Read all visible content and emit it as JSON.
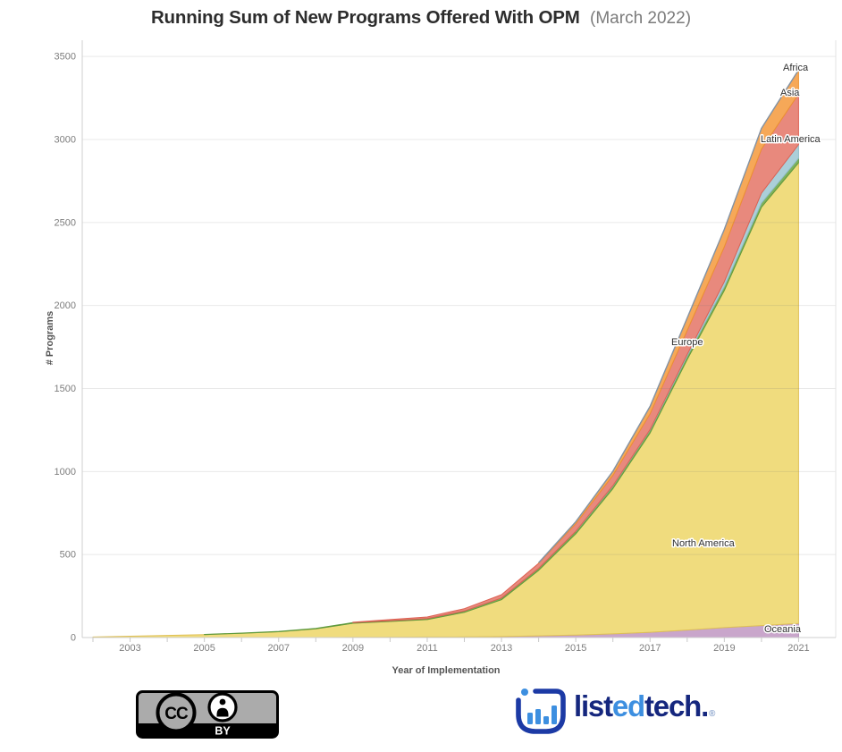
{
  "title": {
    "main": "Running Sum of New Programs Offered With OPM",
    "subtitle": "(March 2022)"
  },
  "chart_data": {
    "type": "area",
    "stacked": true,
    "title": "Running Sum of New Programs Offered With OPM (March 2022)",
    "xlabel": "Year of Implementation",
    "ylabel": "# Programs",
    "x": [
      2002,
      2003,
      2004,
      2005,
      2006,
      2007,
      2008,
      2009,
      2010,
      2011,
      2012,
      2013,
      2014,
      2015,
      2016,
      2017,
      2018,
      2019,
      2020,
      2021
    ],
    "x_tick_labels": [
      "2003",
      "2005",
      "2007",
      "2009",
      "2011",
      "2013",
      "2015",
      "2017",
      "2019",
      "2021"
    ],
    "y_tick_labels": [
      "0",
      "500",
      "1000",
      "1500",
      "2000",
      "2500",
      "3000",
      "3500"
    ],
    "ylim": [
      0,
      3500
    ],
    "grid": "horizontal-only",
    "legend": "inline-area-labels",
    "series": [
      {
        "name": "Oceania",
        "fill": "#c9a6cb",
        "edge": "#b48cb8",
        "values": [
          0,
          0,
          0,
          0,
          0,
          0,
          0,
          1,
          2,
          3,
          4,
          6,
          10,
          15,
          22,
          32,
          45,
          60,
          72,
          85
        ]
      },
      {
        "name": "North America",
        "fill": "#f0dc7e",
        "edge": "#dfc055",
        "values": [
          3,
          8,
          13,
          18,
          26,
          35,
          52,
          85,
          95,
          105,
          148,
          222,
          395,
          610,
          875,
          1200,
          1630,
          2030,
          2520,
          2775
        ]
      },
      {
        "name": "Europe",
        "fill": "#7fb25b",
        "edge": "#5f9a3e",
        "values": [
          0,
          0,
          0,
          1,
          1,
          2,
          3,
          4,
          5,
          6,
          8,
          10,
          12,
          14,
          16,
          18,
          20,
          23,
          25,
          27
        ]
      },
      {
        "name": "Latin America",
        "fill": "#abcfd9",
        "edge": "#8fbdc8",
        "values": [
          0,
          0,
          0,
          0,
          0,
          0,
          0,
          0,
          0,
          0,
          0,
          0,
          0,
          1,
          2,
          3,
          10,
          30,
          60,
          82
        ]
      },
      {
        "name": "Asia",
        "fill": "#e8897d",
        "edge": "#dc6153",
        "values": [
          0,
          0,
          0,
          0,
          0,
          0,
          0,
          2,
          6,
          10,
          14,
          20,
          30,
          45,
          62,
          95,
          145,
          210,
          265,
          305
        ]
      },
      {
        "name": "Africa",
        "fill": "#f6a858",
        "edge": "#ec9231",
        "values": [
          0,
          0,
          0,
          0,
          0,
          0,
          0,
          0,
          0,
          0,
          0,
          0,
          3,
          12,
          25,
          45,
          75,
          105,
          125,
          145
        ]
      }
    ],
    "total_line_color": "#8193a7",
    "approx_total_2021": 3420
  },
  "footer": {
    "license_badge": {
      "cc_text": "CC",
      "by_text": "BY"
    },
    "brand": {
      "navy": "#15277e",
      "blue": "#3d8fe0",
      "muted": "#8aa3cc",
      "word_parts": [
        {
          "text": "list",
          "color": "navy"
        },
        {
          "text": "ed",
          "color": "blue"
        },
        {
          "text": "tech",
          "color": "navy"
        },
        {
          "text": ".",
          "color": "navy"
        },
        {
          "text": "®",
          "color": "muted",
          "small": true
        }
      ]
    }
  }
}
